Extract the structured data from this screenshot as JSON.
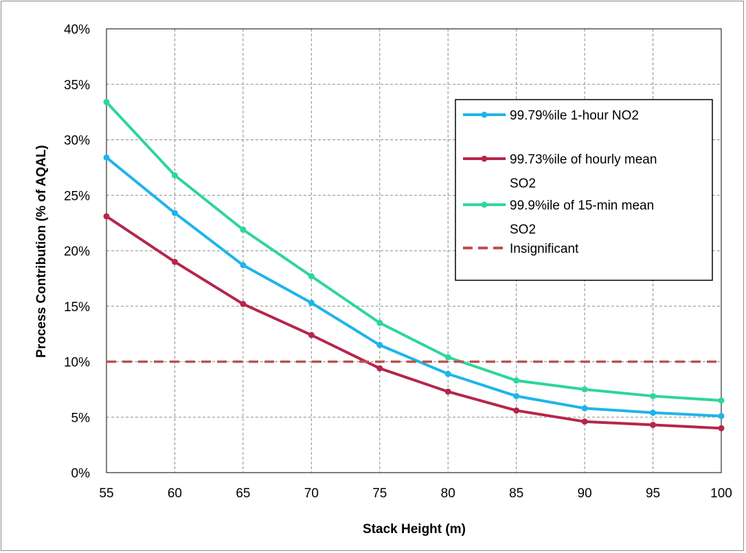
{
  "chart_data": {
    "type": "line",
    "title": "",
    "xlabel": "Stack Height (m)",
    "ylabel": "Process Contribution (% of AQAL)",
    "x": [
      55,
      60,
      65,
      70,
      75,
      80,
      85,
      90,
      95,
      100
    ],
    "x_ticks": [
      "55",
      "60",
      "65",
      "70",
      "75",
      "80",
      "85",
      "90",
      "95",
      "100"
    ],
    "xlim": [
      55,
      100
    ],
    "ylim": [
      0,
      40
    ],
    "y_ticks": [
      {
        "value": 0,
        "label": "0%"
      },
      {
        "value": 5,
        "label": "5%"
      },
      {
        "value": 10,
        "label": "10%"
      },
      {
        "value": 15,
        "label": "15%"
      },
      {
        "value": 20,
        "label": "20%"
      },
      {
        "value": 25,
        "label": "25%"
      },
      {
        "value": 30,
        "label": "30%"
      },
      {
        "value": 35,
        "label": "35%"
      },
      {
        "value": 40,
        "label": "40%"
      }
    ],
    "grid": true,
    "legend_position": "right",
    "series": [
      {
        "name": "99.79%ile 1-hour NO2",
        "legend_lines": [
          "99.79%ile 1-hour NO2"
        ],
        "color": "#1fb4ea",
        "style": "solid-markers",
        "values": [
          28.4,
          23.4,
          18.7,
          15.3,
          11.5,
          8.9,
          6.9,
          5.8,
          5.4,
          5.1
        ]
      },
      {
        "name": "99.73%ile of hourly mean SO2",
        "legend_lines": [
          "99.73%ile of hourly mean",
          "SO2"
        ],
        "color": "#b5264a",
        "style": "solid-markers",
        "values": [
          23.1,
          19.0,
          15.2,
          12.4,
          9.4,
          7.3,
          5.6,
          4.6,
          4.3,
          4.0
        ]
      },
      {
        "name": "99.9%ile of 15-min mean SO2",
        "legend_lines": [
          "99.9%ile of 15-min mean",
          "SO2"
        ],
        "color": "#2ed699",
        "style": "solid-markers",
        "values": [
          33.4,
          26.8,
          21.9,
          17.7,
          13.5,
          10.4,
          8.3,
          7.5,
          6.9,
          6.5
        ]
      },
      {
        "name": "Insignificant",
        "legend_lines": [
          "Insignificant"
        ],
        "color": "#c0504d",
        "style": "dashed",
        "values": [
          10,
          10,
          10,
          10,
          10,
          10,
          10,
          10,
          10,
          10
        ]
      }
    ]
  }
}
